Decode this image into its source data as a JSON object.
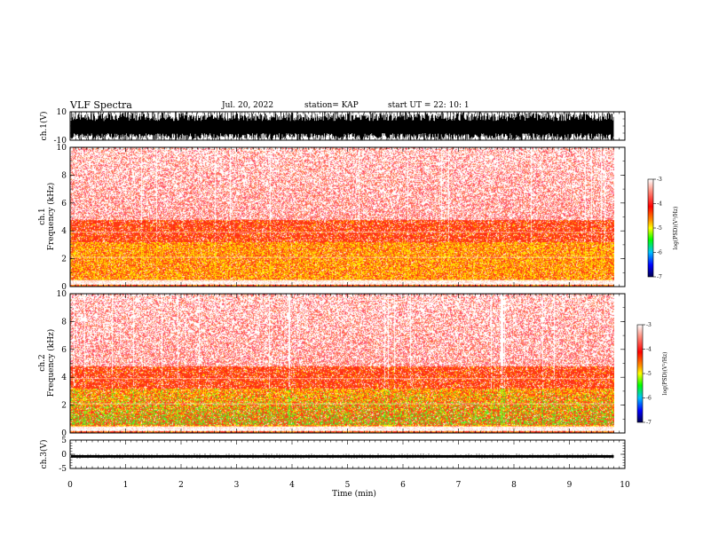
{
  "header": {
    "title": "VLF Spectra",
    "date": "Jul. 20, 2022",
    "station": "station= KAP",
    "start": "start  UT  =   22: 10: 1"
  },
  "chart_data": [
    {
      "type": "line",
      "name": "ch1-waveform",
      "ylabel": "ch.1(V)",
      "ylim": [
        -10,
        10
      ],
      "yticks": [
        -10,
        10
      ],
      "xlim": [
        0,
        10
      ],
      "amplitude_band": [
        -10,
        10
      ]
    },
    {
      "type": "heatmap",
      "name": "ch1-spectrogram",
      "ylabel": "ch.1\nFrequency  (kHz)",
      "ylabel_top": "ch.1",
      "ylabel_main": "Frequency  (kHz)",
      "ylim": [
        0,
        10
      ],
      "yticks": [
        0,
        2,
        4,
        6,
        8,
        10
      ],
      "xlim": [
        0,
        9.8
      ],
      "colorbar": {
        "label": "log(PSD)(V²/Hz)",
        "ticks": [
          -3,
          -4,
          -5,
          -6,
          -7
        ],
        "range": [
          -7,
          -3
        ]
      }
    },
    {
      "type": "heatmap",
      "name": "ch2-spectrogram",
      "ylabel": "ch.2\nFrequency  (kHz)",
      "ylabel_top": "ch.2",
      "ylabel_main": "Frequency  (kHz)",
      "ylim": [
        0,
        10
      ],
      "yticks": [
        0,
        2,
        4,
        6,
        8,
        10
      ],
      "xlim": [
        0,
        9.8
      ],
      "colorbar": {
        "label": "log(PSD)(V²/Hz)",
        "ticks": [
          -3,
          -4,
          -5,
          -6,
          -7
        ],
        "range": [
          -7,
          -3
        ]
      }
    },
    {
      "type": "line",
      "name": "ch3-waveform",
      "ylabel": "ch.3(V)",
      "ylim": [
        -5,
        5
      ],
      "yticks": [
        -5,
        0,
        5
      ],
      "xlim": [
        0,
        10
      ],
      "amplitude_band": [
        -1.2,
        -0.3
      ],
      "xlabel": "Time  (min)",
      "xticks": [
        0,
        1,
        2,
        3,
        4,
        5,
        6,
        7,
        8,
        9,
        10
      ]
    }
  ],
  "colors": {
    "background": "#ffffff",
    "trace": "#000000",
    "spec_white": "#ffffff",
    "spec_red": "#ff2010",
    "spec_yellow": "#ffd000",
    "spec_green": "#30e030",
    "spec_blue": "#0000c0"
  }
}
